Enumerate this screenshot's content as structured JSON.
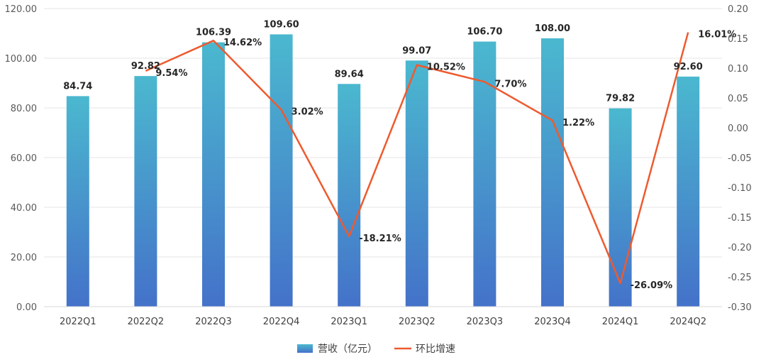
{
  "chart_data": {
    "type": "bar",
    "title": "",
    "categories": [
      "2022Q1",
      "2022Q2",
      "2022Q3",
      "2022Q4",
      "2023Q1",
      "2023Q2",
      "2023Q3",
      "2023Q4",
      "2024Q1",
      "2024Q2"
    ],
    "series": [
      {
        "name": "营收（亿元）",
        "type": "bar",
        "axis": "left",
        "values": [
          84.74,
          92.82,
          106.39,
          109.6,
          89.64,
          99.07,
          106.7,
          108.0,
          79.82,
          92.6
        ],
        "labels": [
          "84.74",
          "92.82",
          "106.39",
          "109.60",
          "89.64",
          "99.07",
          "106.70",
          "108.00",
          "79.82",
          "92.60"
        ]
      },
      {
        "name": "环比增速",
        "type": "line",
        "axis": "right",
        "values": [
          null,
          0.0954,
          0.1462,
          0.0302,
          -0.1821,
          0.1052,
          0.077,
          0.0122,
          -0.2609,
          0.1601
        ],
        "labels": [
          "",
          "9.54%",
          "14.62%",
          "3.02%",
          "-18.21%",
          "10.52%",
          "7.70%",
          "1.22%",
          "-26.09%",
          "16.01%"
        ]
      }
    ],
    "y_left": {
      "range": [
        0,
        120
      ],
      "ticks": [
        0,
        20,
        40,
        60,
        80,
        100,
        120
      ],
      "tick_labels": [
        "0.00",
        "20.00",
        "40.00",
        "60.00",
        "80.00",
        "100.00",
        "120.00"
      ]
    },
    "y_right": {
      "range": [
        -0.3,
        0.2
      ],
      "ticks": [
        -0.3,
        -0.25,
        -0.2,
        -0.15,
        -0.1,
        -0.05,
        0.0,
        0.05,
        0.1,
        0.15,
        0.2
      ],
      "tick_labels": [
        "-0.30",
        "-0.25",
        "-0.20",
        "-0.15",
        "-0.10",
        "-0.05",
        "0.00",
        "0.05",
        "0.10",
        "0.15",
        "0.20"
      ]
    },
    "grid": true,
    "legend_position": "bottom",
    "colors": {
      "bar_top": "#4bb8cf",
      "bar_bottom": "#4472c9",
      "line": "#ee5a2f"
    }
  }
}
